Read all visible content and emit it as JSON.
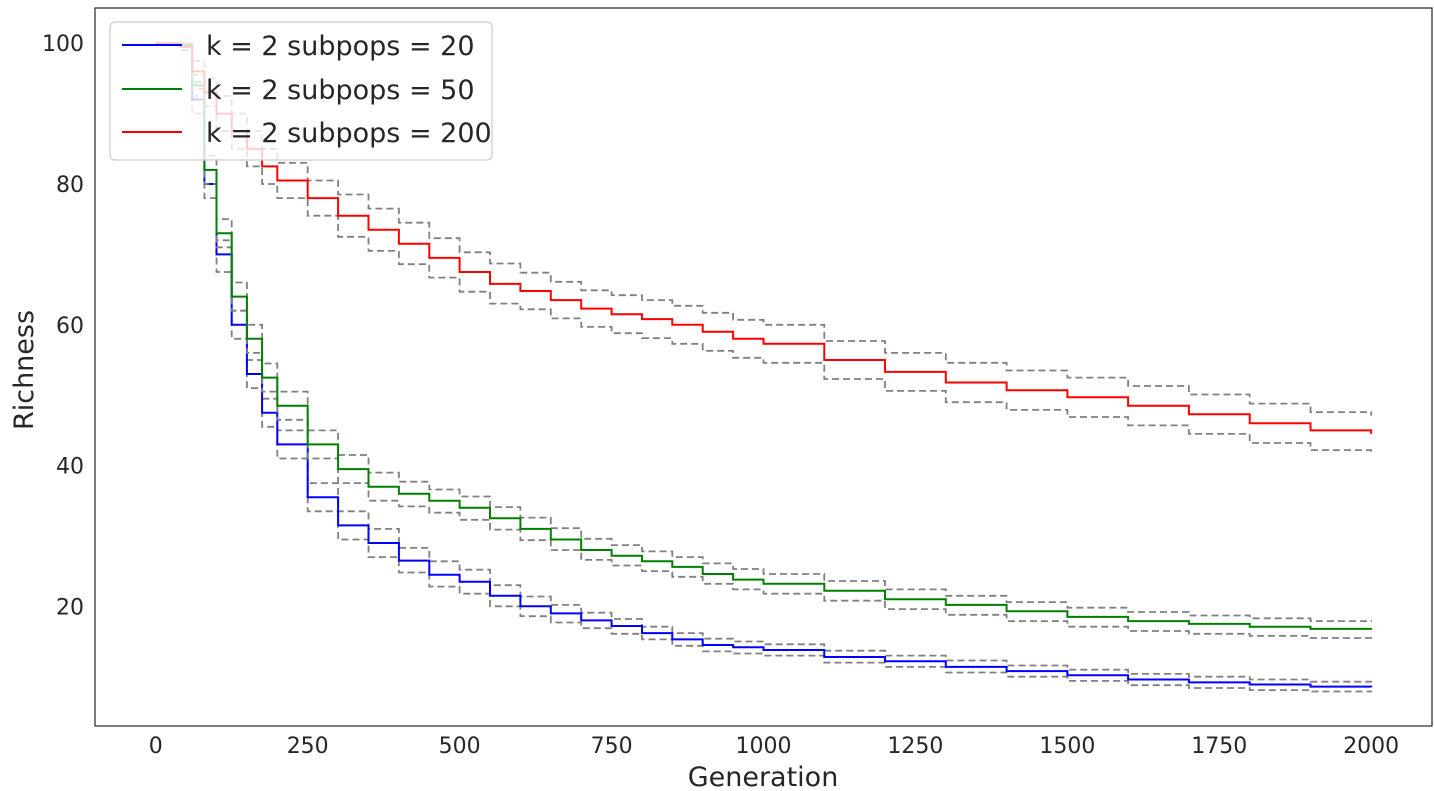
{
  "chart_data": {
    "type": "line",
    "title": "",
    "xlabel": "Generation",
    "ylabel": "Richness",
    "xlim": [
      -100,
      2100
    ],
    "ylim": [
      3,
      105
    ],
    "xticks": [
      0,
      250,
      500,
      750,
      1000,
      1250,
      1500,
      1750,
      2000
    ],
    "yticks": [
      20,
      40,
      60,
      80,
      100
    ],
    "grid": false,
    "legend_position": "upper-left",
    "band_color": "#808080",
    "series": [
      {
        "name": "k = 2 subpops = 20",
        "color": "#0000ff",
        "x": [
          0,
          40,
          60,
          80,
          100,
          125,
          150,
          175,
          200,
          250,
          300,
          350,
          400,
          450,
          500,
          550,
          600,
          650,
          700,
          750,
          800,
          850,
          900,
          950,
          1000,
          1100,
          1200,
          1300,
          1400,
          1500,
          1600,
          1700,
          1800,
          1900,
          2000
        ],
        "mean": [
          100,
          99.5,
          92,
          80,
          70,
          60,
          53,
          47.5,
          43,
          35.5,
          31.5,
          29,
          26.5,
          24.5,
          23.5,
          21.5,
          20,
          19,
          18,
          17.2,
          16.2,
          15.3,
          14.5,
          14.2,
          13.8,
          12.8,
          12.2,
          11.4,
          10.8,
          10.2,
          9.6,
          9.2,
          8.9,
          8.6,
          8.5
        ],
        "upper": [
          100,
          100,
          93.5,
          82,
          72,
          62,
          55,
          49.5,
          45,
          37.5,
          33.5,
          31,
          28.3,
          26.4,
          25.2,
          23,
          21.4,
          20.2,
          19.1,
          18.2,
          17.1,
          16.2,
          15.4,
          15,
          14.6,
          13.7,
          13,
          12.3,
          11.6,
          11,
          10.4,
          10,
          9.6,
          9.3,
          9.2
        ],
        "lower": [
          100,
          99,
          90,
          78,
          67.5,
          58,
          51,
          45.5,
          41,
          33.5,
          29.5,
          27,
          24.8,
          22.8,
          21.8,
          20,
          18.6,
          17.7,
          16.9,
          16.1,
          15.3,
          14.4,
          13.6,
          13.3,
          13,
          12,
          11.4,
          10.6,
          10,
          9.4,
          8.8,
          8.4,
          8.1,
          7.9,
          7.8
        ]
      },
      {
        "name": "k = 2 subpops = 50",
        "color": "#008000",
        "x": [
          0,
          40,
          60,
          80,
          100,
          125,
          150,
          175,
          200,
          250,
          300,
          350,
          400,
          450,
          500,
          550,
          600,
          650,
          700,
          750,
          800,
          850,
          900,
          950,
          1000,
          1100,
          1200,
          1300,
          1400,
          1500,
          1600,
          1700,
          1800,
          1900,
          2000
        ],
        "mean": [
          100,
          99.8,
          94,
          82,
          73,
          64,
          58,
          52.5,
          48.5,
          43,
          39.5,
          37,
          36,
          35,
          34,
          32.5,
          31,
          29.5,
          28,
          27.2,
          26.4,
          25.6,
          24.6,
          23.8,
          23.2,
          22.2,
          21,
          20.2,
          19.3,
          18.5,
          17.9,
          17.5,
          17.1,
          16.8,
          16.7
        ],
        "upper": [
          100,
          100,
          95.5,
          84,
          75,
          66,
          60,
          54.5,
          50.5,
          45,
          41.5,
          39,
          37.7,
          36.6,
          35.6,
          34.1,
          32.6,
          31.1,
          29.6,
          28.7,
          27.8,
          27,
          26.1,
          25.3,
          24.6,
          23.6,
          22.4,
          21.5,
          20.6,
          19.8,
          19.2,
          18.7,
          18.3,
          17.9,
          17.8
        ],
        "lower": [
          100,
          99.5,
          92.5,
          80,
          71,
          62,
          56,
          50.5,
          46.5,
          41,
          37.5,
          35,
          34.2,
          33.3,
          32.3,
          30.9,
          29.4,
          28,
          26.6,
          25.8,
          25,
          24.2,
          23.2,
          22.4,
          21.8,
          20.8,
          19.6,
          18.8,
          17.9,
          17.1,
          16.5,
          16.1,
          15.8,
          15.5,
          15.3
        ]
      },
      {
        "name": "k = 2 subpops = 200",
        "color": "#ff0000",
        "x": [
          0,
          40,
          60,
          80,
          100,
          125,
          150,
          175,
          200,
          250,
          300,
          350,
          400,
          450,
          500,
          550,
          600,
          650,
          700,
          750,
          800,
          850,
          900,
          950,
          1000,
          1100,
          1200,
          1300,
          1400,
          1500,
          1600,
          1700,
          1800,
          1900,
          2000
        ],
        "mean": [
          100,
          99.5,
          96,
          93,
          90,
          87.5,
          85,
          82.5,
          80.5,
          78,
          75.5,
          73.5,
          71.5,
          69.5,
          67.5,
          65.8,
          64.8,
          63.5,
          62.3,
          61.5,
          60.8,
          60,
          59,
          58,
          57.3,
          55,
          53.3,
          51.8,
          50.7,
          49.7,
          48.5,
          47.3,
          46,
          45,
          44.5
        ],
        "upper": [
          100,
          100,
          97.5,
          95,
          92.5,
          90,
          87.5,
          85,
          83,
          80.5,
          78.5,
          76.5,
          74.5,
          72.3,
          70.3,
          68.7,
          67.4,
          66.1,
          64.9,
          64.2,
          63.5,
          62.7,
          61.7,
          60.7,
          60,
          57.7,
          56,
          54.6,
          53.5,
          52.5,
          51.3,
          50.1,
          48.8,
          47.6,
          47.1
        ],
        "lower": [
          100,
          99,
          94.5,
          91,
          87.5,
          85,
          82.5,
          80,
          78,
          75.5,
          72.5,
          70.5,
          68.6,
          66.7,
          64.7,
          63,
          62.2,
          60.9,
          59.7,
          58.8,
          58.1,
          57.3,
          56.3,
          55.3,
          54.6,
          52.3,
          50.6,
          49,
          47.9,
          46.9,
          45.7,
          44.5,
          43.2,
          42.2,
          41.8
        ]
      }
    ]
  }
}
